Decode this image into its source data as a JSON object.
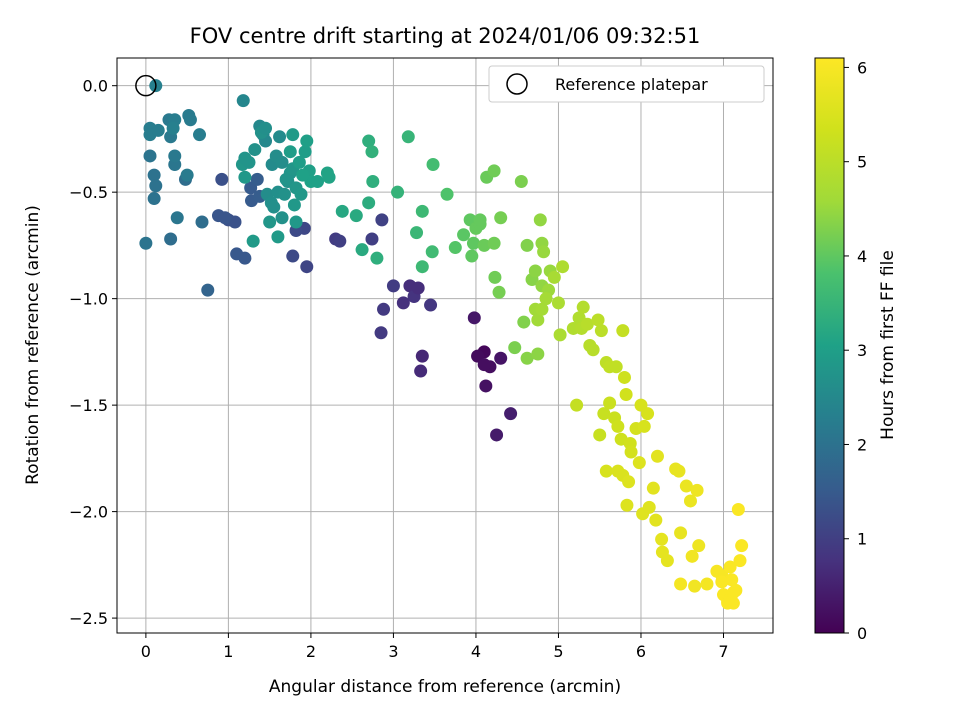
{
  "chart_data": {
    "type": "scatter",
    "title": "FOV centre drift starting at 2024/01/06 09:32:51",
    "xlabel": "Angular distance from reference (arcmin)",
    "ylabel": "Rotation from reference (arcmin)",
    "xlim": [
      -0.35,
      7.6
    ],
    "ylim": [
      -2.57,
      0.13
    ],
    "xticks": [
      0,
      1,
      2,
      3,
      4,
      5,
      6,
      7
    ],
    "xtick_labels": [
      "0",
      "1",
      "2",
      "3",
      "4",
      "5",
      "6",
      "7"
    ],
    "yticks": [
      0.0,
      -0.5,
      -1.0,
      -1.5,
      -2.0,
      -2.5
    ],
    "ytick_labels": [
      "0.0",
      "−0.5",
      "−1.0",
      "−1.5",
      "−2.0",
      "−2.5"
    ],
    "grid": true,
    "legend": {
      "position": "top-right",
      "entries": [
        "Reference platepar"
      ]
    },
    "reference_point": {
      "x": 0,
      "y": 0
    },
    "colorbar": {
      "label": "Hours from first FF file",
      "range": [
        0,
        6.1
      ],
      "ticks": [
        0,
        1,
        2,
        3,
        4,
        5,
        6
      ],
      "tick_labels": [
        "0",
        "1",
        "2",
        "3",
        "4",
        "5",
        "6"
      ],
      "colormap": "viridis"
    },
    "points": [
      [
        4.1,
        -1.25,
        0.1
      ],
      [
        4.02,
        -1.27,
        0.15
      ],
      [
        4.17,
        -1.32,
        0.2
      ],
      [
        4.12,
        -1.41,
        0.25
      ],
      [
        4.3,
        -1.28,
        0.3
      ],
      [
        3.98,
        -1.09,
        0.35
      ],
      [
        4.25,
        -1.64,
        0.4
      ],
      [
        4.42,
        -1.54,
        0.45
      ],
      [
        4.1,
        -1.31,
        0.2
      ],
      [
        3.35,
        -1.27,
        0.6
      ],
      [
        3.33,
        -1.34,
        0.65
      ],
      [
        3.2,
        -0.94,
        0.7
      ],
      [
        3.12,
        -1.02,
        0.75
      ],
      [
        3.25,
        -0.99,
        0.8
      ],
      [
        3.3,
        -0.95,
        0.7
      ],
      [
        3.45,
        -1.03,
        0.85
      ],
      [
        2.88,
        -1.05,
        0.9
      ],
      [
        2.85,
        -1.16,
        0.9
      ],
      [
        3.0,
        -0.94,
        0.95
      ],
      [
        2.3,
        -0.72,
        0.95
      ],
      [
        2.35,
        -0.73,
        1.0
      ],
      [
        2.74,
        -0.72,
        1.0
      ],
      [
        2.86,
        -0.63,
        1.05
      ],
      [
        1.95,
        -0.85,
        1.1
      ],
      [
        1.92,
        -0.67,
        1.15
      ],
      [
        1.78,
        -0.8,
        1.2
      ],
      [
        1.82,
        -0.68,
        1.2
      ],
      [
        0.92,
        -0.44,
        1.3
      ],
      [
        1.0,
        -0.63,
        1.3
      ],
      [
        1.08,
        -0.64,
        1.35
      ],
      [
        0.88,
        -0.61,
        1.4
      ],
      [
        0.96,
        -0.62,
        1.4
      ],
      [
        1.1,
        -0.79,
        1.45
      ],
      [
        1.2,
        -0.81,
        1.45
      ],
      [
        1.28,
        -0.54,
        1.5
      ],
      [
        1.27,
        -0.48,
        1.5
      ],
      [
        1.35,
        -0.44,
        1.55
      ],
      [
        1.38,
        -0.52,
        1.55
      ],
      [
        0.75,
        -0.96,
        1.7
      ],
      [
        0.48,
        -0.44,
        1.9
      ],
      [
        0.68,
        -0.64,
        1.9
      ],
      [
        0.3,
        -0.72,
        1.9
      ],
      [
        0.1,
        -0.42,
        2.0
      ],
      [
        0.12,
        -0.47,
        2.0
      ],
      [
        0.1,
        -0.53,
        2.0
      ],
      [
        0.05,
        -0.33,
        2.05
      ],
      [
        0.0,
        -0.74,
        2.05
      ],
      [
        0.38,
        -0.62,
        2.1
      ],
      [
        0.35,
        -0.37,
        2.1
      ],
      [
        0.35,
        -0.33,
        2.15
      ],
      [
        0.3,
        -0.24,
        2.15
      ],
      [
        0.28,
        -0.16,
        2.15
      ],
      [
        0.5,
        -0.42,
        2.2
      ],
      [
        0.52,
        -0.14,
        2.2
      ],
      [
        0.54,
        -0.16,
        2.2
      ],
      [
        0.65,
        -0.23,
        2.25
      ],
      [
        0.05,
        -0.2,
        2.25
      ],
      [
        0.05,
        -0.23,
        2.25
      ],
      [
        0.15,
        -0.21,
        2.25
      ],
      [
        0.35,
        -0.16,
        2.25
      ],
      [
        0.33,
        -0.2,
        2.3
      ],
      [
        0.12,
        0.0,
        2.3
      ],
      [
        1.18,
        -0.07,
        2.45
      ],
      [
        1.42,
        -0.23,
        2.45
      ],
      [
        1.38,
        -0.19,
        2.5
      ],
      [
        1.45,
        -0.26,
        2.5
      ],
      [
        1.53,
        -0.37,
        2.55
      ],
      [
        1.62,
        -0.24,
        2.55
      ],
      [
        1.58,
        -0.33,
        2.6
      ],
      [
        1.65,
        -0.36,
        2.6
      ],
      [
        1.47,
        -0.51,
        2.6
      ],
      [
        1.52,
        -0.55,
        2.65
      ],
      [
        1.55,
        -0.57,
        2.65
      ],
      [
        1.6,
        -0.5,
        2.65
      ],
      [
        1.65,
        -0.62,
        2.7
      ],
      [
        1.68,
        -0.51,
        2.7
      ],
      [
        1.72,
        -0.45,
        2.7
      ],
      [
        1.75,
        -0.41,
        2.75
      ],
      [
        1.7,
        -0.44,
        2.75
      ],
      [
        1.78,
        -0.39,
        2.8
      ],
      [
        1.82,
        -0.48,
        2.8
      ],
      [
        1.88,
        -0.51,
        2.85
      ],
      [
        1.8,
        -0.56,
        2.85
      ],
      [
        1.82,
        -0.64,
        2.85
      ],
      [
        1.5,
        -0.64,
        2.8
      ],
      [
        1.6,
        -0.71,
        2.9
      ],
      [
        1.3,
        -0.73,
        2.9
      ],
      [
        1.2,
        -0.43,
        2.85
      ],
      [
        1.17,
        -0.37,
        2.8
      ],
      [
        1.2,
        -0.34,
        2.75
      ],
      [
        1.25,
        -0.36,
        2.75
      ],
      [
        1.32,
        -0.3,
        2.7
      ],
      [
        1.4,
        -0.22,
        2.7
      ],
      [
        1.45,
        -0.2,
        2.65
      ],
      [
        1.78,
        -0.23,
        2.9
      ],
      [
        1.75,
        -0.31,
        2.95
      ],
      [
        1.86,
        -0.36,
        2.95
      ],
      [
        1.93,
        -0.31,
        2.95
      ],
      [
        1.95,
        -0.26,
        3.0
      ],
      [
        1.98,
        -0.4,
        3.0
      ],
      [
        2.0,
        -0.45,
        3.05
      ],
      [
        2.08,
        -0.45,
        3.05
      ],
      [
        2.2,
        -0.41,
        3.1
      ],
      [
        2.22,
        -0.43,
        3.1
      ],
      [
        1.9,
        -0.42,
        3.05
      ],
      [
        2.38,
        -0.59,
        3.2
      ],
      [
        2.55,
        -0.61,
        3.25
      ],
      [
        2.62,
        -0.77,
        3.25
      ],
      [
        2.7,
        -0.55,
        3.3
      ],
      [
        2.8,
        -0.81,
        3.35
      ],
      [
        2.75,
        -0.45,
        3.35
      ],
      [
        2.7,
        -0.26,
        3.35
      ],
      [
        2.74,
        -0.31,
        3.4
      ],
      [
        3.05,
        -0.5,
        3.45
      ],
      [
        3.18,
        -0.24,
        3.5
      ],
      [
        3.28,
        -0.69,
        3.55
      ],
      [
        3.35,
        -0.59,
        3.6
      ],
      [
        3.35,
        -0.85,
        3.6
      ],
      [
        3.47,
        -0.78,
        3.65
      ],
      [
        3.48,
        -0.37,
        3.7
      ],
      [
        3.65,
        -0.51,
        3.85
      ],
      [
        3.75,
        -0.76,
        3.9
      ],
      [
        3.85,
        -0.7,
        3.95
      ],
      [
        3.93,
        -0.63,
        4.0
      ],
      [
        3.95,
        -0.8,
        4.0
      ],
      [
        3.97,
        -0.74,
        4.0
      ],
      [
        4.0,
        -0.67,
        4.05
      ],
      [
        4.05,
        -0.65,
        4.05
      ],
      [
        4.05,
        -0.63,
        4.05
      ],
      [
        4.1,
        -0.75,
        4.1
      ],
      [
        4.13,
        -0.43,
        4.1
      ],
      [
        4.22,
        -0.74,
        4.15
      ],
      [
        4.23,
        -0.9,
        4.15
      ],
      [
        4.22,
        -0.4,
        4.15
      ],
      [
        4.28,
        -0.97,
        4.2
      ],
      [
        4.3,
        -0.62,
        4.2
      ],
      [
        4.47,
        -1.23,
        4.25
      ],
      [
        4.55,
        -0.45,
        4.25
      ],
      [
        4.58,
        -1.11,
        4.3
      ],
      [
        4.62,
        -0.75,
        4.3
      ],
      [
        4.62,
        -1.28,
        4.35
      ],
      [
        4.68,
        -0.91,
        4.35
      ],
      [
        4.72,
        -0.87,
        4.4
      ],
      [
        4.75,
        -1.26,
        4.4
      ],
      [
        4.78,
        -0.63,
        4.45
      ],
      [
        4.8,
        -0.74,
        4.45
      ],
      [
        4.8,
        -0.94,
        4.45
      ],
      [
        4.82,
        -0.78,
        4.5
      ],
      [
        4.9,
        -0.87,
        4.5
      ],
      [
        4.88,
        -0.96,
        4.55
      ],
      [
        4.72,
        -1.05,
        4.6
      ],
      [
        4.75,
        -1.1,
        4.6
      ],
      [
        4.8,
        -1.05,
        4.65
      ],
      [
        4.85,
        -1.0,
        4.65
      ],
      [
        4.95,
        -0.9,
        4.7
      ],
      [
        5.0,
        -1.02,
        4.75
      ],
      [
        5.02,
        -1.17,
        4.75
      ],
      [
        5.05,
        -0.85,
        4.8
      ],
      [
        5.18,
        -1.14,
        4.85
      ],
      [
        5.25,
        -1.09,
        4.85
      ],
      [
        5.3,
        -1.04,
        4.9
      ],
      [
        5.28,
        -1.14,
        4.9
      ],
      [
        5.35,
        -1.12,
        4.95
      ],
      [
        5.38,
        -1.22,
        4.95
      ],
      [
        5.42,
        -1.24,
        4.95
      ],
      [
        5.48,
        -1.1,
        5.0
      ],
      [
        5.52,
        -1.15,
        5.0
      ],
      [
        5.58,
        -1.3,
        5.05
      ],
      [
        5.62,
        -1.32,
        5.1
      ],
      [
        5.7,
        -1.32,
        5.1
      ],
      [
        5.78,
        -1.15,
        5.15
      ],
      [
        5.22,
        -1.5,
        5.15
      ],
      [
        5.5,
        -1.64,
        5.2
      ],
      [
        5.55,
        -1.54,
        5.2
      ],
      [
        5.62,
        -1.49,
        5.25
      ],
      [
        5.68,
        -1.56,
        5.25
      ],
      [
        5.72,
        -1.6,
        5.3
      ],
      [
        5.76,
        -1.66,
        5.3
      ],
      [
        5.8,
        -1.37,
        5.3
      ],
      [
        5.82,
        -1.45,
        5.35
      ],
      [
        5.87,
        -1.68,
        5.35
      ],
      [
        5.88,
        -1.72,
        5.4
      ],
      [
        5.94,
        -1.61,
        5.4
      ],
      [
        6.0,
        -1.5,
        5.45
      ],
      [
        6.04,
        -1.6,
        5.45
      ],
      [
        6.08,
        -1.54,
        5.45
      ],
      [
        5.58,
        -1.81,
        5.45
      ],
      [
        5.72,
        -1.81,
        5.5
      ],
      [
        5.78,
        -1.83,
        5.5
      ],
      [
        5.85,
        -1.86,
        5.55
      ],
      [
        5.83,
        -1.97,
        5.55
      ],
      [
        5.98,
        -1.77,
        5.55
      ],
      [
        6.02,
        -2.01,
        5.6
      ],
      [
        6.1,
        -1.98,
        5.6
      ],
      [
        6.15,
        -1.89,
        5.65
      ],
      [
        6.18,
        -2.04,
        5.65
      ],
      [
        6.2,
        -1.74,
        5.65
      ],
      [
        6.25,
        -2.13,
        5.7
      ],
      [
        6.26,
        -2.19,
        5.7
      ],
      [
        6.32,
        -2.23,
        5.7
      ],
      [
        6.42,
        -1.8,
        5.75
      ],
      [
        6.46,
        -1.81,
        5.75
      ],
      [
        6.48,
        -2.1,
        5.75
      ],
      [
        6.55,
        -1.88,
        5.8
      ],
      [
        6.6,
        -1.95,
        5.8
      ],
      [
        6.68,
        -1.9,
        5.85
      ],
      [
        6.7,
        -2.16,
        5.85
      ],
      [
        6.62,
        -2.21,
        5.9
      ],
      [
        6.65,
        -2.35,
        5.9
      ],
      [
        6.48,
        -2.34,
        5.95
      ],
      [
        6.8,
        -2.34,
        5.95
      ],
      [
        6.92,
        -2.28,
        6.0
      ],
      [
        6.98,
        -2.3,
        6.0
      ],
      [
        7.0,
        -2.39,
        6.05
      ],
      [
        7.05,
        -2.42,
        6.05
      ],
      [
        7.1,
        -2.32,
        6.05
      ],
      [
        7.12,
        -2.38,
        6.05
      ],
      [
        7.15,
        -2.37,
        6.05
      ],
      [
        7.08,
        -2.26,
        6.05
      ],
      [
        7.05,
        -2.43,
        6.05
      ],
      [
        7.12,
        -2.43,
        6.05
      ],
      [
        7.18,
        -1.99,
        6.05
      ],
      [
        7.2,
        -2.23,
        6.05
      ],
      [
        7.22,
        -2.16,
        6.05
      ],
      [
        6.98,
        -2.33,
        6.05
      ]
    ]
  }
}
